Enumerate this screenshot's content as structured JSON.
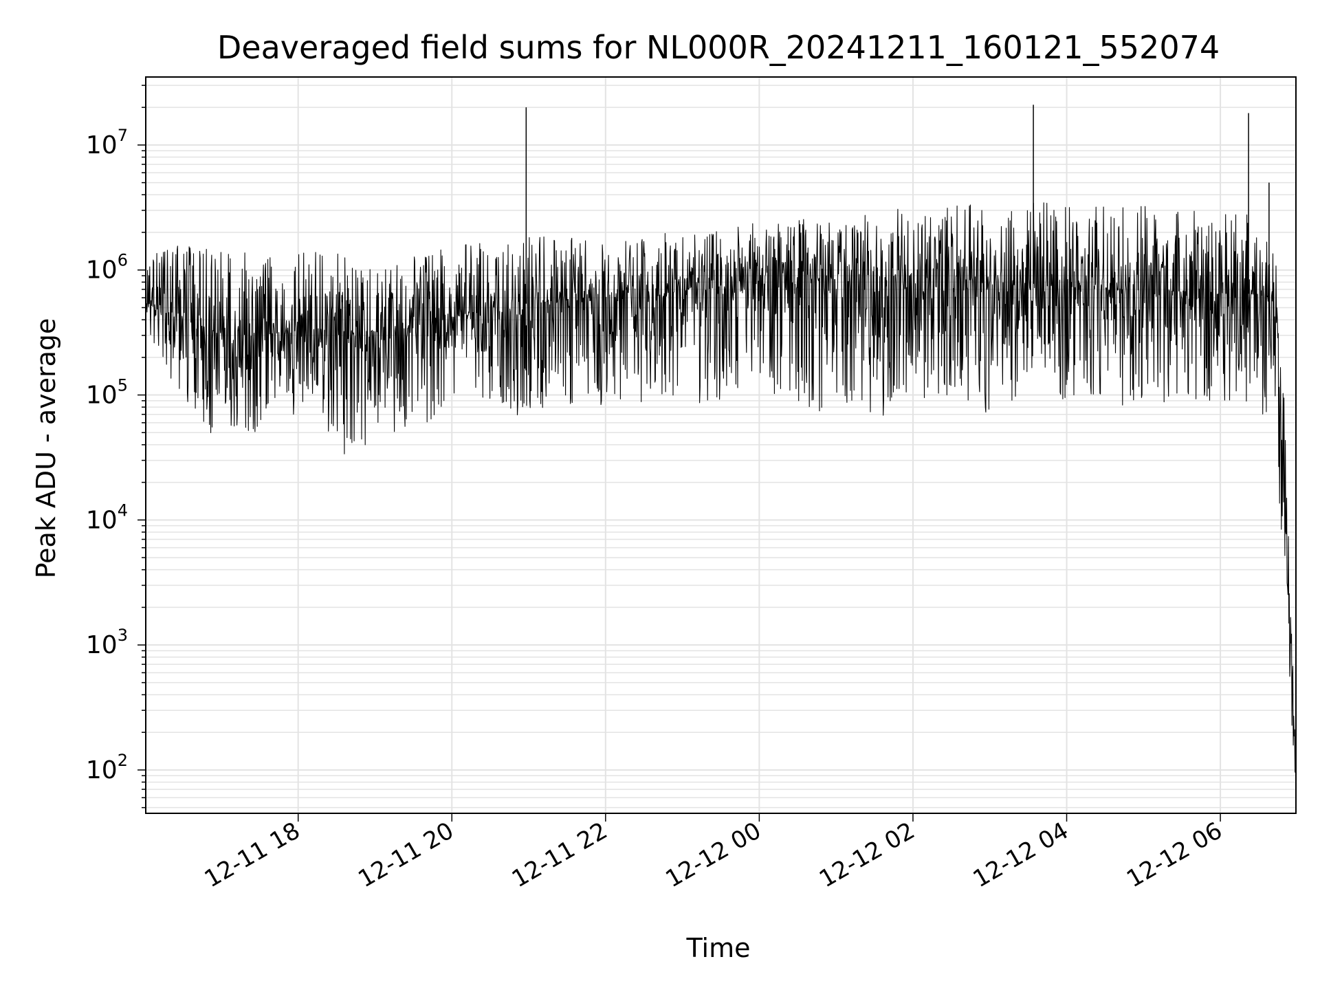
{
  "chart_data": {
    "type": "line",
    "title": "Deaveraged field sums for NL000R_20241211_160121_552074",
    "xlabel": "Time",
    "ylabel": "Peak ADU - average",
    "yscale": "log",
    "ylim": [
      45,
      35000000
    ],
    "xlim": [
      "2024-12-11 16:01",
      "2024-12-12 06:59"
    ],
    "grid": "major and minor, both axes",
    "line_color": "#000000",
    "x_ticks": [
      "12-11 18",
      "12-11 20",
      "12-11 22",
      "12-12 00",
      "12-12 02",
      "12-12 04",
      "12-12 06"
    ],
    "y_ticks": [
      {
        "base": "10",
        "exp": "2"
      },
      {
        "base": "10",
        "exp": "3"
      },
      {
        "base": "10",
        "exp": "4"
      },
      {
        "base": "10",
        "exp": "5"
      },
      {
        "base": "10",
        "exp": "6"
      },
      {
        "base": "10",
        "exp": "7"
      }
    ],
    "series": [
      {
        "x": [
          "2024-12-11 16:01",
          "2024-12-11 16:15",
          "2024-12-11 16:30",
          "2024-12-11 16:45",
          "2024-12-11 17:00",
          "2024-12-11 17:15",
          "2024-12-11 17:30",
          "2024-12-11 17:45",
          "2024-12-11 18:00",
          "2024-12-11 18:15",
          "2024-12-11 18:30",
          "2024-12-11 18:45",
          "2024-12-11 19:00",
          "2024-12-11 19:15",
          "2024-12-11 19:30",
          "2024-12-11 19:45",
          "2024-12-11 20:00",
          "2024-12-11 20:15",
          "2024-12-11 20:30",
          "2024-12-11 20:45",
          "2024-12-11 21:00",
          "2024-12-11 21:15",
          "2024-12-11 21:30",
          "2024-12-11 21:45",
          "2024-12-11 22:00",
          "2024-12-11 22:15",
          "2024-12-11 22:30",
          "2024-12-11 22:45",
          "2024-12-11 23:00",
          "2024-12-11 23:15",
          "2024-12-11 23:30",
          "2024-12-11 23:45",
          "2024-12-12 00:00",
          "2024-12-12 00:15",
          "2024-12-12 00:30",
          "2024-12-12 00:45",
          "2024-12-12 01:00",
          "2024-12-12 01:15",
          "2024-12-12 01:30",
          "2024-12-12 01:45",
          "2024-12-12 02:00",
          "2024-12-12 02:15",
          "2024-12-12 02:30",
          "2024-12-12 02:45",
          "2024-12-12 03:00",
          "2024-12-12 03:15",
          "2024-12-12 03:30",
          "2024-12-12 03:45",
          "2024-12-12 04:00",
          "2024-12-12 04:15",
          "2024-12-12 04:30",
          "2024-12-12 04:45",
          "2024-12-12 05:00",
          "2024-12-12 05:15",
          "2024-12-12 05:30",
          "2024-12-12 05:45",
          "2024-12-12 06:00",
          "2024-12-12 06:15",
          "2024-12-12 06:30",
          "2024-12-12 06:40",
          "2024-12-12 06:45",
          "2024-12-12 06:50",
          "2024-12-12 06:53",
          "2024-12-12 06:56",
          "2024-12-12 06:59"
        ],
        "low": [
          300000,
          150000,
          100000,
          40000,
          60000,
          50000,
          40000,
          100000,
          60000,
          100000,
          25000,
          30000,
          50000,
          45000,
          60000,
          60000,
          100000,
          90000,
          80000,
          60000,
          70000,
          80000,
          70000,
          90000,
          60000,
          100000,
          80000,
          100000,
          90000,
          70000,
          80000,
          100000,
          90000,
          100000,
          80000,
          70000,
          80000,
          80000,
          50000,
          100000,
          80000,
          100000,
          90000,
          80000,
          70000,
          80000,
          120000,
          100000,
          90000,
          100000,
          80000,
          80000,
          90000,
          80000,
          70000,
          90000,
          90000,
          80000,
          80000,
          50000,
          20000,
          3000,
          1000,
          100,
          80
        ],
        "high": [
          1200000,
          1500000,
          1800000,
          1700000,
          1500000,
          1400000,
          1300000,
          1400000,
          1400000,
          1500000,
          1400000,
          1300000,
          1200000,
          1200000,
          1300000,
          1500000,
          1500000,
          1700000,
          1600000,
          1800000,
          1900000,
          2000000,
          1800000,
          1900000,
          1800000,
          1800000,
          2000000,
          2000000,
          2100000,
          2200000,
          2300000,
          2300000,
          2400000,
          2500000,
          2600000,
          2700000,
          2800000,
          2900000,
          3000000,
          3100000,
          3200000,
          3300000,
          3200000,
          3400000,
          3500000,
          3400000,
          3600000,
          3500000,
          3300000,
          3400000,
          3300000,
          3200000,
          3300000,
          3200000,
          3100000,
          3200000,
          3000000,
          3100000,
          3200000,
          3000000,
          1000000,
          100000,
          10000,
          1000,
          200
        ],
        "mid": [
          550000,
          500000,
          450000,
          300000,
          350000,
          320000,
          300000,
          320000,
          330000,
          340000,
          330000,
          320000,
          320000,
          330000,
          350000,
          380000,
          420000,
          460000,
          500000,
          520000,
          540000,
          560000,
          580000,
          600000,
          610000,
          620000,
          640000,
          660000,
          680000,
          700000,
          720000,
          740000,
          760000,
          780000,
          800000,
          820000,
          840000,
          860000,
          880000,
          900000,
          900000,
          880000,
          860000,
          840000,
          820000,
          800000,
          780000,
          760000,
          740000,
          720000,
          700000,
          700000,
          690000,
          680000,
          680000,
          670000,
          660000,
          650000,
          640000,
          600000,
          200000,
          20000,
          4000,
          500,
          120
        ]
      }
    ],
    "spikes": [
      {
        "x": "2024-12-11 20:58",
        "y": 20000000
      },
      {
        "x": "2024-12-12 03:34",
        "y": 21000000
      },
      {
        "x": "2024-12-12 06:22",
        "y": 18000000
      },
      {
        "x": "2024-12-12 06:38",
        "y": 5000000
      }
    ]
  }
}
